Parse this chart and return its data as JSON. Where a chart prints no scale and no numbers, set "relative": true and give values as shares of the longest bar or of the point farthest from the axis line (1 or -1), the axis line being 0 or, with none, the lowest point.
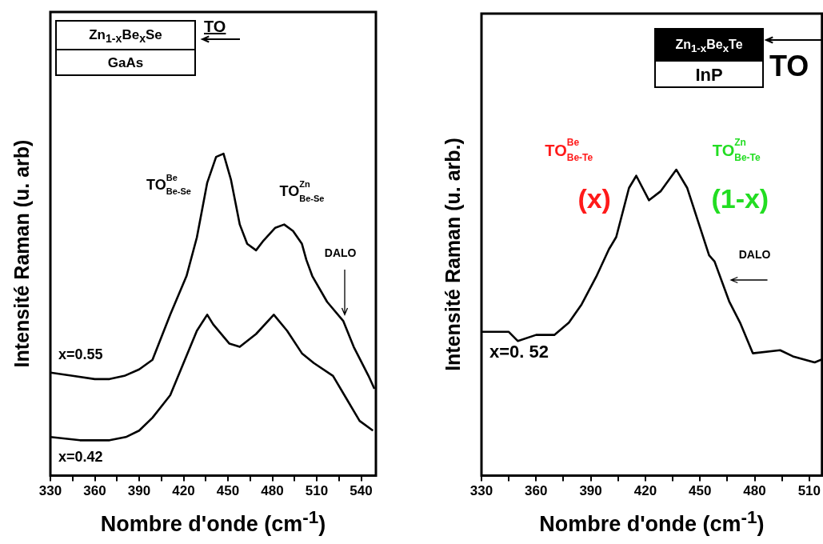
{
  "chart_data": [
    {
      "type": "line",
      "relative": true,
      "xlabel": "Nombre d'onde (cm$^{-1}$)",
      "ylabel": "Intensité Raman (u. arb)",
      "xlim": [
        330,
        550
      ],
      "xticks": [
        330,
        {
          "value": 345,
          "label": null
        },
        360,
        {
          "value": 375,
          "label": null
        },
        390,
        {
          "value": 405,
          "label": null
        },
        420,
        {
          "value": 435,
          "label": null
        },
        450,
        {
          "value": 465,
          "label": null
        },
        480,
        {
          "value": 495,
          "label": null
        },
        510,
        {
          "value": 525,
          "label": null
        },
        540
      ],
      "series": [
        {
          "name": "x=0.55",
          "color": "#000000",
          "x": [
            330,
            345,
            360,
            370,
            380,
            390,
            399,
            411,
            422,
            429,
            436,
            442,
            447,
            452,
            458,
            463,
            469,
            474,
            482,
            488,
            494,
            500,
            503,
            507,
            517,
            528,
            535,
            545,
            549
          ],
          "values": [
            0.32,
            0.31,
            0.3,
            0.3,
            0.31,
            0.33,
            0.36,
            0.5,
            0.62,
            0.74,
            0.91,
            0.99,
            1.0,
            0.92,
            0.78,
            0.72,
            0.7,
            0.73,
            0.77,
            0.78,
            0.76,
            0.72,
            0.67,
            0.62,
            0.54,
            0.48,
            0.4,
            0.31,
            0.27
          ]
        },
        {
          "name": "x=0.42",
          "color": "#000000",
          "x": [
            330,
            350,
            370,
            381,
            390,
            399,
            411,
            420,
            429,
            436,
            440,
            451,
            458,
            469,
            481,
            490,
            500,
            508,
            521,
            530,
            539,
            548
          ],
          "values": [
            0.12,
            0.11,
            0.11,
            0.12,
            0.14,
            0.18,
            0.25,
            0.35,
            0.45,
            0.5,
            0.47,
            0.41,
            0.4,
            0.44,
            0.5,
            0.45,
            0.38,
            0.35,
            0.31,
            0.24,
            0.17,
            0.14
          ]
        }
      ],
      "annotations": [
        "Zn$_{1-x}$Be$_{x}$Se",
        "GaAs",
        "TO",
        "TO$^{Be}$$_{Be-Se}$",
        "TO$^{Zn}$$_{Be-Se}$",
        "DALO"
      ]
    },
    {
      "type": "line",
      "relative": true,
      "xlabel": "Nombre d'onde (cm$^{-1}$)",
      "ylabel": "Intensité Raman (u. arb.)",
      "xlim": [
        330,
        517
      ],
      "xticks": [
        330,
        {
          "value": 345,
          "label": null
        },
        360,
        {
          "value": 375,
          "label": null
        },
        390,
        {
          "value": 405,
          "label": null
        },
        420,
        {
          "value": 435,
          "label": null
        },
        450,
        {
          "value": 465,
          "label": null
        },
        480,
        {
          "value": 495,
          "label": null
        },
        510
      ],
      "series": [
        {
          "name": "x=0. 52",
          "color": "#000000",
          "x": [
            330,
            345,
            350,
            360,
            370,
            378,
            385,
            393,
            400,
            404,
            411,
            415,
            422,
            428.5,
            437,
            443,
            449,
            455,
            458,
            466,
            472,
            479,
            494,
            501,
            513,
            517
          ],
          "values": [
            0.47,
            0.47,
            0.44,
            0.46,
            0.46,
            0.5,
            0.56,
            0.65,
            0.74,
            0.78,
            0.94,
            0.98,
            0.9,
            0.93,
            1.0,
            0.94,
            0.83,
            0.72,
            0.7,
            0.57,
            0.5,
            0.4,
            0.41,
            0.39,
            0.37,
            0.38
          ]
        }
      ],
      "annotations": [
        "Zn$_{1-x}$Be$_{x}$Te",
        "InP",
        "TO",
        "TO$^{Be}$$_{Be-Te}$",
        "(x)",
        "TO$^{Zn}$$_{Be-Te}$",
        "(1-x)",
        "DALO"
      ]
    }
  ]
}
